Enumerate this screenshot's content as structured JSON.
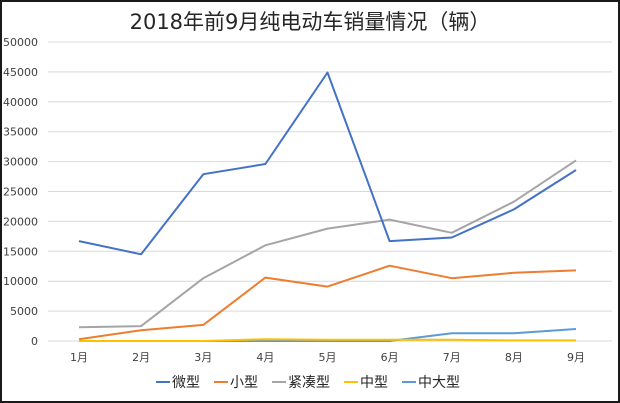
{
  "chart_data": {
    "type": "line",
    "title": "2018年前9月纯电动车销量情况（辆）",
    "xlabel": "",
    "ylabel": "",
    "ylim": [
      0,
      50000
    ],
    "yticks": [
      0,
      5000,
      10000,
      15000,
      20000,
      25000,
      30000,
      35000,
      40000,
      45000,
      50000
    ],
    "grid": true,
    "legend_position": "bottom",
    "categories": [
      "1月",
      "2月",
      "3月",
      "4月",
      "5月",
      "6月",
      "7月",
      "8月",
      "9月"
    ],
    "series": [
      {
        "name": "微型",
        "color": "#4472C4",
        "values": [
          16700,
          14500,
          27900,
          29600,
          44900,
          16700,
          17300,
          22000,
          28600
        ]
      },
      {
        "name": "小型",
        "color": "#ED7D31",
        "values": [
          300,
          1800,
          2700,
          10600,
          9100,
          12600,
          10500,
          11400,
          11800
        ]
      },
      {
        "name": "紧凑型",
        "color": "#A5A5A5",
        "values": [
          2300,
          2500,
          10500,
          16000,
          18800,
          20300,
          18100,
          23300,
          30200
        ]
      },
      {
        "name": "中型",
        "color": "#FFC000",
        "values": [
          0,
          0,
          0,
          300,
          200,
          200,
          200,
          100,
          100
        ]
      },
      {
        "name": "中大型",
        "color": "#5B9BD5",
        "values": [
          0,
          0,
          0,
          0,
          0,
          0,
          1300,
          1300,
          2000
        ]
      }
    ]
  },
  "legend": {
    "items": [
      {
        "label": "微型",
        "color": "#4472C4"
      },
      {
        "label": "小型",
        "color": "#ED7D31"
      },
      {
        "label": "紧凑型",
        "color": "#A5A5A5"
      },
      {
        "label": "中型",
        "color": "#FFC000"
      },
      {
        "label": "中大型",
        "color": "#5B9BD5"
      }
    ]
  }
}
